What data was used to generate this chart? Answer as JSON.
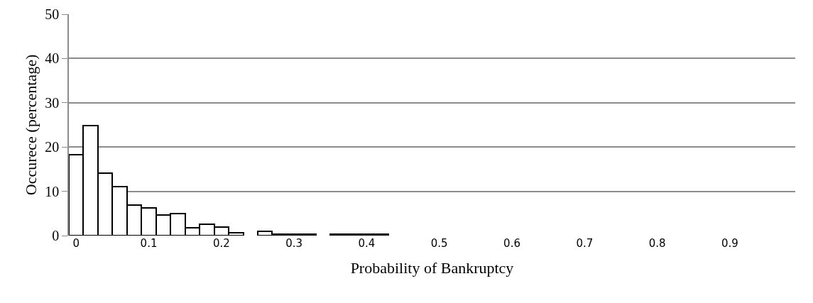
{
  "chart_data": {
    "type": "bar",
    "xlabel": "Probability of Bankruptcy",
    "ylabel": "Occurece (percentage)",
    "categories": [
      "0",
      null,
      null,
      null,
      null,
      "0.1",
      null,
      null,
      null,
      null,
      "0.2",
      null,
      null,
      null,
      null,
      "0.3",
      null,
      null,
      null,
      null,
      "0.4",
      null,
      null,
      null,
      null,
      "0.5",
      null,
      null,
      null,
      null,
      "0.6",
      null,
      null,
      null,
      null,
      "0.7",
      null,
      null,
      null,
      null,
      "0.8",
      null,
      null,
      null,
      null,
      "0.9",
      null,
      null,
      null,
      null
    ],
    "values": [
      18.3,
      24.9,
      14.1,
      11.0,
      6.9,
      6.2,
      4.6,
      4.9,
      1.7,
      2.5,
      1.9,
      0.7,
      0,
      1.0,
      0.3,
      0.3,
      0.3,
      0,
      0.3,
      0.3,
      0.3,
      0.3,
      0,
      0,
      0,
      0,
      0,
      0,
      0,
      0,
      0,
      0,
      0,
      0,
      0,
      0,
      0,
      0,
      0,
      0,
      0,
      0,
      0,
      0,
      0,
      0,
      0,
      0,
      0,
      0
    ],
    "color": "#ffffff",
    "ylim": [
      0,
      50
    ],
    "yticks": [
      0,
      10,
      20,
      30,
      40,
      50
    ],
    "grid": "y"
  }
}
